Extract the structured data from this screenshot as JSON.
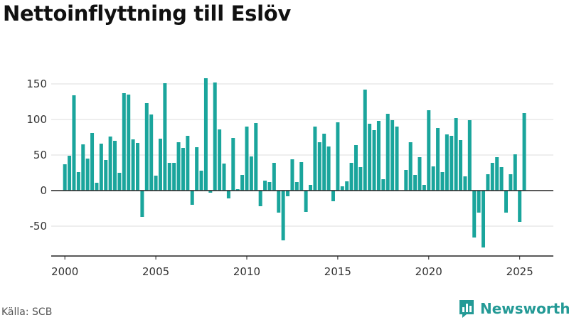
{
  "title": "Nettoinflyttning till Eslöv",
  "source": "Källa: SCB",
  "brand": {
    "name": "Newsworthy"
  },
  "colors": {
    "bar": "#1aa59c",
    "brand": "#249a96",
    "grid": "#dddddd",
    "axis": "#222222"
  },
  "chart_data": {
    "type": "bar",
    "title": "Nettoinflyttning till Eslöv",
    "xlabel": "",
    "ylabel": "",
    "x_start": 2000.0,
    "x_step": 0.25,
    "x_ticks": [
      2000,
      2005,
      2010,
      2015,
      2020,
      2025
    ],
    "xlim": [
      1999.25,
      2026.85
    ],
    "y_ticks": [
      -50,
      0,
      50,
      100,
      150
    ],
    "ylim": [
      -92,
      170
    ],
    "grid": true,
    "values": [
      37,
      49,
      134,
      26,
      65,
      45,
      81,
      11,
      66,
      43,
      76,
      70,
      25,
      137,
      135,
      72,
      67,
      -37,
      123,
      107,
      21,
      73,
      151,
      39,
      39,
      68,
      60,
      77,
      -20,
      61,
      28,
      158,
      -3,
      152,
      86,
      38,
      -11,
      74,
      2,
      22,
      90,
      48,
      95,
      -22,
      14,
      12,
      39,
      -31,
      -70,
      -8,
      44,
      12,
      40,
      -30,
      8,
      90,
      68,
      80,
      62,
      -15,
      96,
      6,
      13,
      39,
      64,
      33,
      142,
      94,
      85,
      98,
      16,
      108,
      99,
      90,
      0,
      29,
      68,
      22,
      47,
      8,
      113,
      34,
      88,
      26,
      79,
      77,
      102,
      71,
      20,
      99,
      -66,
      -31,
      -80,
      23,
      39,
      47,
      33,
      -31,
      23,
      51,
      -44,
      109
    ]
  }
}
